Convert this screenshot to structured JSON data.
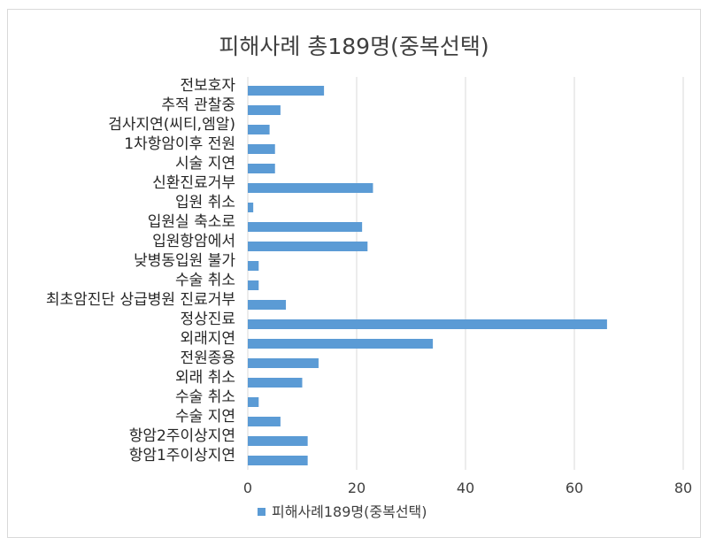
{
  "chart_data": {
    "type": "bar",
    "orientation": "horizontal",
    "title": "피해사례 총189명(중복선택)",
    "categories": [
      "전보호자",
      "추적 관찰중",
      "검사지연(씨티,엠알)",
      "1차항암이후 전원",
      "시술 지연",
      "신환진료거부",
      "입원 취소",
      "입원실 축소로",
      "입원항암에서",
      "낮병동입원 불가",
      "수술 취소",
      "최초암진단 상급병원 진료거부",
      "정상진료",
      "외래지연",
      "전원종용",
      "외래 취소",
      "수술 취소",
      "수술 지연",
      "항암2주이상지연",
      "항암1주이상지연"
    ],
    "series": [
      {
        "name": "피해사례189명(중복선택)",
        "values": [
          14,
          6,
          4,
          5,
          5,
          23,
          1,
          21,
          22,
          2,
          2,
          7,
          66,
          34,
          13,
          10,
          2,
          6,
          11,
          11
        ]
      }
    ],
    "xlim": [
      0,
      80
    ],
    "xticks": [
      0,
      20,
      40,
      60,
      80
    ],
    "grid": true,
    "legend_position": "bottom",
    "bar_color": "#5b9bd5"
  }
}
